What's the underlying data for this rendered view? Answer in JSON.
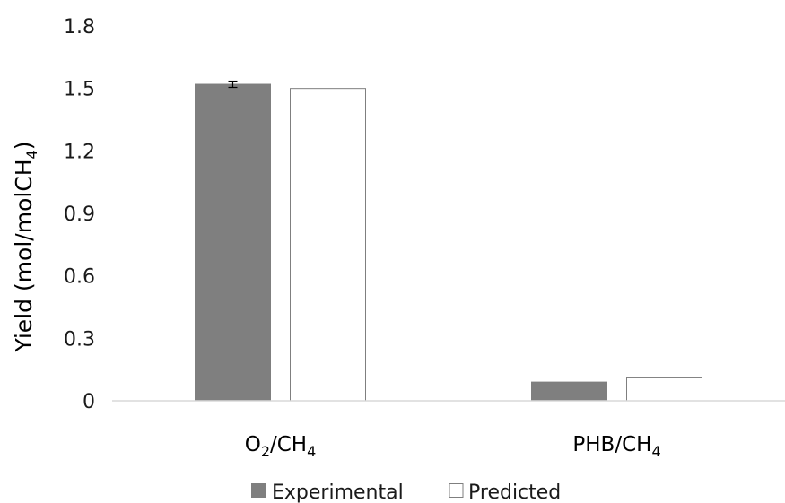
{
  "chart_data": {
    "type": "bar",
    "categories": [
      {
        "main": "O",
        "sub1": "2",
        "mid": "/CH",
        "sub2": "4"
      },
      {
        "main": "PHB",
        "sub1": "",
        "mid": "/CH",
        "sub2": "4"
      }
    ],
    "series": [
      {
        "name": "Experimental",
        "values": [
          1.52,
          0.09
        ],
        "errors": [
          0.015,
          0.0
        ],
        "color": "#7f7f7f",
        "stroke": "#7f7f7f"
      },
      {
        "name": "Predicted",
        "values": [
          1.5,
          0.11
        ],
        "errors": [
          0,
          0
        ],
        "color": "#ffffff",
        "stroke": "#7f7f7f"
      }
    ],
    "ylabel": {
      "main": "Yield (mol/molCH",
      "sub": "4",
      "close": ")"
    },
    "ylim": [
      0,
      1.8
    ],
    "yticks": [
      "0",
      "0.3",
      "0.6",
      "0.9",
      "1.2",
      "1.5",
      "1.8"
    ],
    "legend_position": "bottom",
    "grid": false
  }
}
